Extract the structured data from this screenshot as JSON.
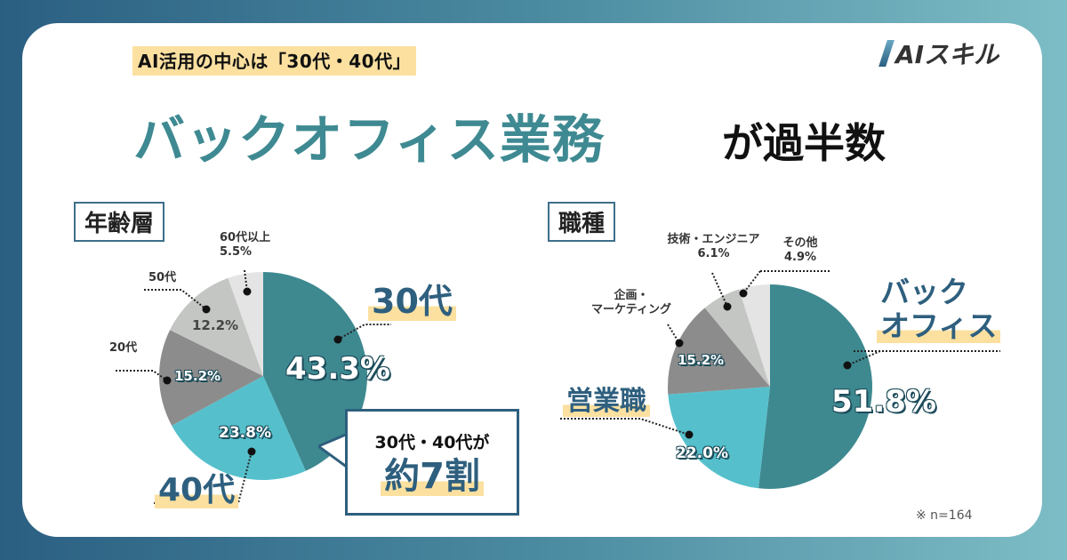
{
  "header": {
    "subtitle": "AI活用の中心は「30代・40代」",
    "title_main": "バックオフィス業務",
    "title_tail": "が過半数",
    "logo": "AIスキル"
  },
  "colors": {
    "teal_dark": "#3e8990",
    "teal_light": "#55c0cc",
    "grey_dark": "#8c8c8c",
    "grey_mid": "#c3c6c3",
    "grey_light": "#e4e4e4",
    "navy": "#2e5f7e",
    "highlight": "#fbe0a0"
  },
  "age": {
    "section_label": "年齢層",
    "labels": {
      "s60": "60代以上",
      "s60_pct": "5.5%",
      "s50": "50代",
      "s50_pct": "12.2%",
      "s20": "20代",
      "s20_pct": "15.2%",
      "s30": "30代",
      "s30_pct": "43.3%",
      "s40": "40代",
      "s40_pct": "23.8%"
    },
    "callout": {
      "line1": "30代・40代が",
      "line2": "約7割"
    }
  },
  "job": {
    "section_label": "職種",
    "labels": {
      "other": "その他",
      "other_pct": "4.9%",
      "tech": "技術・エンジニア",
      "tech_pct": "6.1%",
      "plan1": "企画・",
      "plan2": "マーケティング",
      "plan_pct": "15.2%",
      "sales": "営業職",
      "sales_pct": "22.0%",
      "back1": "バック",
      "back2": "オフィス",
      "back_pct": "51.8%"
    }
  },
  "footnote": "※ n=164",
  "chart_data": [
    {
      "type": "pie",
      "title": "年齢層",
      "categories": [
        "30代",
        "40代",
        "20代",
        "50代",
        "60代以上"
      ],
      "values": [
        43.3,
        23.8,
        15.2,
        12.2,
        5.5
      ],
      "unit": "%",
      "start_angle": "12 o'clock, clockwise",
      "annotation": "30代・40代が約7割",
      "n": 164
    },
    {
      "type": "pie",
      "title": "職種",
      "categories": [
        "バックオフィス",
        "営業職",
        "企画・マーケティング",
        "技術・エンジニア",
        "その他"
      ],
      "values": [
        51.8,
        22.0,
        15.2,
        6.1,
        4.9
      ],
      "unit": "%",
      "start_angle": "12 o'clock, clockwise",
      "n": 164
    }
  ]
}
